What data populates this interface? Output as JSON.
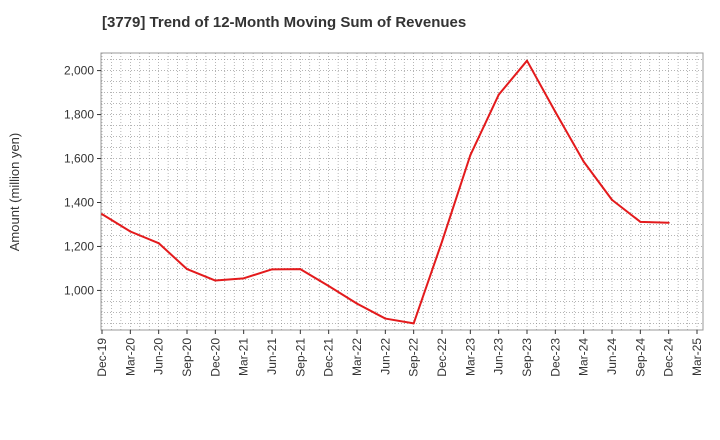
{
  "chart_data": {
    "type": "line",
    "title": "[3779]  Trend of 12-Month Moving Sum of Revenues",
    "xlabel": "",
    "ylabel": "Amount (million yen)",
    "categories": [
      "Dec-19",
      "Mar-20",
      "Jun-20",
      "Sep-20",
      "Dec-20",
      "Mar-21",
      "Jun-21",
      "Sep-21",
      "Dec-21",
      "Mar-22",
      "Jun-22",
      "Sep-22",
      "Dec-22",
      "Mar-23",
      "Jun-23",
      "Sep-23",
      "Dec-23",
      "Mar-24",
      "Jun-24",
      "Sep-24",
      "Dec-24",
      "Mar-25"
    ],
    "yticks": [
      1000,
      1200,
      1400,
      1600,
      1800,
      2000
    ],
    "ytick_labels": [
      "1,000",
      "1,200",
      "1,400",
      "1,600",
      "1,800",
      "2,000"
    ],
    "ylim": [
      820,
      2080
    ],
    "grid": true,
    "series": [
      {
        "color": "#e31a1c",
        "values": [
          1347,
          1268,
          1215,
          1097,
          1045,
          1055,
          1096,
          1097,
          1020,
          940,
          872,
          850,
          1222,
          1615,
          1890,
          2045,
          1812,
          1586,
          1412,
          1312,
          1308,
          null
        ]
      }
    ]
  }
}
